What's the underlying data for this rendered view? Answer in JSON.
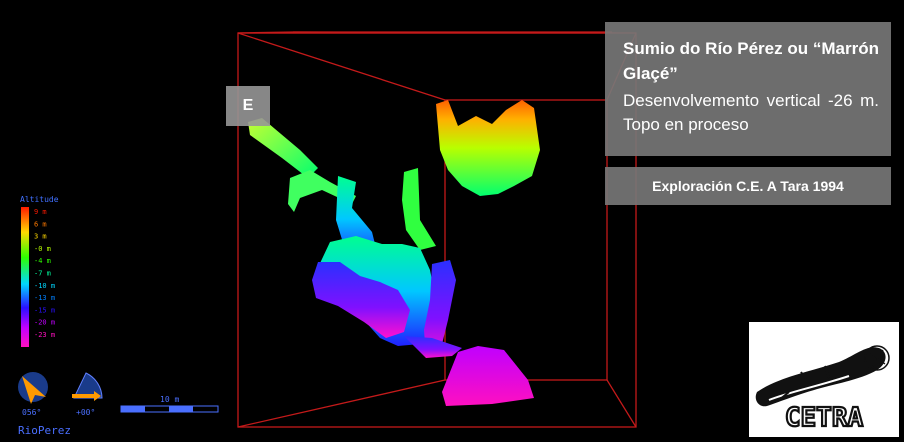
{
  "info": {
    "title": "Sumio do Río Pérez ou “Marrón Glaçé”",
    "description": "Desenvolvemento vertical -26 m. Topo en proceso",
    "credit": "Exploración C.E. A Tara 1994"
  },
  "marker": {
    "label": "E"
  },
  "legend": {
    "title": "Altitude",
    "levels": [
      "9 m",
      "6 m",
      "3 m",
      "-0 m",
      "-4 m",
      "-7 m",
      "-10 m",
      "-13 m",
      "-15 m",
      "-20 m",
      "-23 m"
    ],
    "colors": [
      "#ff1a00",
      "#ff7a00",
      "#ffd800",
      "#b8ff00",
      "#2eff00",
      "#00ffa0",
      "#00d8ff",
      "#0080ff",
      "#2a10ff",
      "#c000ff",
      "#ff10c0"
    ]
  },
  "compass": {
    "heading": "056°",
    "tilt": "+00°"
  },
  "scale": {
    "label": "10 m"
  },
  "survey_name": "RioPerez",
  "logo": {
    "text": "CETRA"
  }
}
